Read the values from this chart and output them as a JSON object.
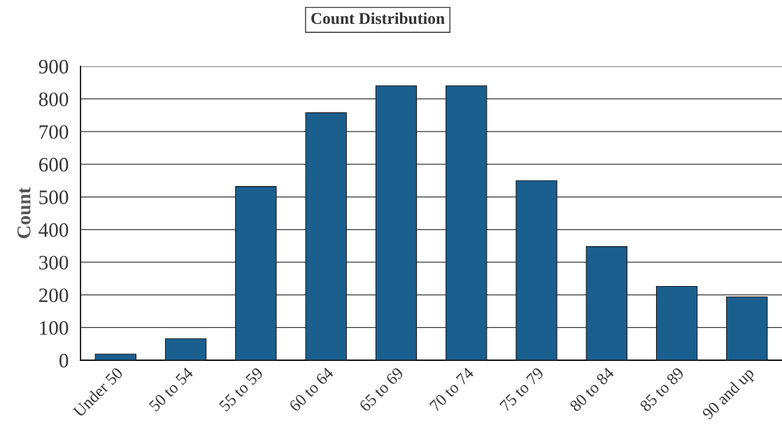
{
  "chart_data": {
    "type": "bar",
    "title": "Count Distribution",
    "ylabel": "Count",
    "categories": [
      "Under 50",
      "50 to 54",
      "55 to 59",
      "60 to 64",
      "65 to 69",
      "70 to 74",
      "75 to 79",
      "80 to 84",
      "85 to 89",
      "90 and up"
    ],
    "values": [
      19,
      66,
      532,
      758,
      840,
      840,
      550,
      348,
      226,
      194
    ],
    "color": "#1b5f8f",
    "ylim": [
      0,
      900
    ],
    "yticks": [
      0,
      100,
      200,
      300,
      400,
      500,
      600,
      700,
      800,
      900
    ],
    "grid": "y"
  }
}
